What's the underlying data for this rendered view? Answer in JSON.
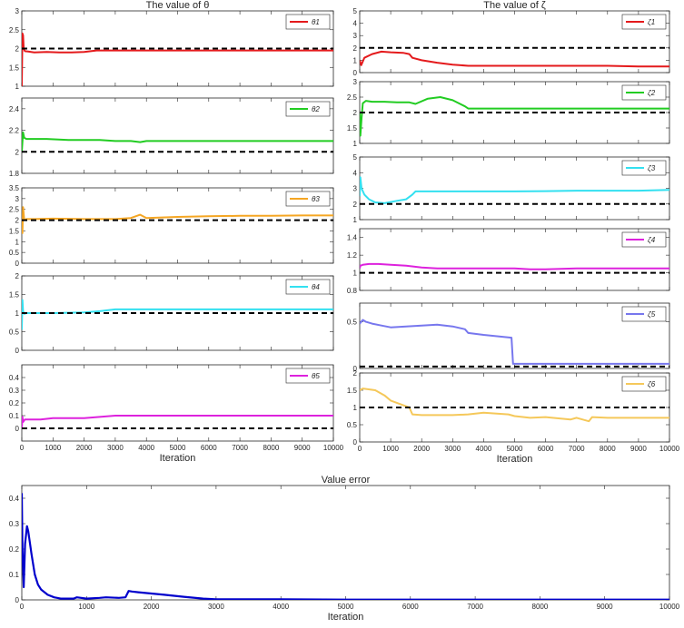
{
  "chart_data": [
    {
      "type": "line",
      "title": "The value of θ",
      "xlim": [
        0,
        10000
      ],
      "ylim": [
        1,
        3
      ],
      "yticks": [
        "1",
        "1.5",
        "2",
        "2.5",
        "3"
      ],
      "xticks": [],
      "series": [
        {
          "name": "θ1",
          "color": "#e41a1c",
          "style": "solid",
          "x": [
            0,
            20,
            40,
            60,
            100,
            200,
            400,
            800,
            1200,
            1600,
            2000,
            2400,
            3000,
            4000,
            5000,
            6000,
            7000,
            8000,
            9000,
            10000
          ],
          "y": [
            1.0,
            2.4,
            2.35,
            2.0,
            1.93,
            1.92,
            1.9,
            1.91,
            1.9,
            1.9,
            1.91,
            1.95,
            1.95,
            1.95,
            1.95,
            1.95,
            1.95,
            1.95,
            1.95,
            1.95
          ]
        },
        {
          "name": "",
          "color": "#000000",
          "style": "dashed",
          "x": [
            0,
            10000
          ],
          "y": [
            2,
            2
          ]
        }
      ]
    },
    {
      "type": "line",
      "title": "",
      "xlim": [
        0,
        10000
      ],
      "ylim": [
        1.8,
        2.5
      ],
      "yticks": [
        "1.8",
        "2",
        "2.2",
        "2.4"
      ],
      "xticks": [],
      "series": [
        {
          "name": "θ2",
          "color": "#22cc22",
          "style": "solid",
          "x": [
            0,
            40,
            80,
            150,
            300,
            800,
            1500,
            2500,
            3000,
            3500,
            3800,
            4000,
            5000,
            6000,
            7000,
            8000,
            9000,
            10000
          ],
          "y": [
            2.0,
            2.18,
            2.13,
            2.12,
            2.12,
            2.12,
            2.11,
            2.11,
            2.1,
            2.1,
            2.09,
            2.1,
            2.1,
            2.1,
            2.1,
            2.1,
            2.1,
            2.1
          ]
        },
        {
          "name": "",
          "color": "#000000",
          "style": "dashed",
          "x": [
            0,
            10000
          ],
          "y": [
            2.0,
            2.0
          ]
        }
      ]
    },
    {
      "type": "line",
      "title": "",
      "xlim": [
        0,
        10000
      ],
      "ylim": [
        0,
        3.5
      ],
      "yticks": [
        "0",
        "0.5",
        "1",
        "1.5",
        "2",
        "2.5",
        "3",
        "3.5"
      ],
      "xticks": [],
      "series": [
        {
          "name": "θ3",
          "color": "#f5a623",
          "style": "solid",
          "x": [
            0,
            20,
            40,
            80,
            150,
            400,
            1000,
            2000,
            3000,
            3500,
            3800,
            4000,
            5000,
            6000,
            7000,
            8000,
            9000,
            10000
          ],
          "y": [
            2.0,
            1.4,
            2.6,
            2.0,
            2.05,
            2.05,
            2.07,
            2.05,
            2.05,
            2.1,
            2.25,
            2.1,
            2.15,
            2.18,
            2.2,
            2.2,
            2.22,
            2.22
          ]
        },
        {
          "name": "",
          "color": "#000000",
          "style": "dashed",
          "x": [
            0,
            10000
          ],
          "y": [
            2.0,
            2.0
          ]
        }
      ]
    },
    {
      "type": "line",
      "title": "",
      "xlim": [
        0,
        10000
      ],
      "ylim": [
        0,
        2
      ],
      "yticks": [
        "0",
        "0.5",
        "1",
        "1.5",
        "2"
      ],
      "xticks": [],
      "series": [
        {
          "name": "θ4",
          "color": "#33e0f0",
          "style": "solid",
          "x": [
            0,
            20,
            40,
            80,
            150,
            300,
            1000,
            2000,
            2500,
            3000,
            4000,
            5000,
            6000,
            7000,
            8000,
            9000,
            10000
          ],
          "y": [
            0.55,
            1.35,
            1.05,
            0.98,
            1.0,
            1.0,
            1.0,
            1.02,
            1.05,
            1.1,
            1.1,
            1.1,
            1.1,
            1.1,
            1.1,
            1.1,
            1.1
          ]
        },
        {
          "name": "",
          "color": "#000000",
          "style": "dashed",
          "x": [
            0,
            10000
          ],
          "y": [
            1.0,
            1.0
          ]
        }
      ]
    },
    {
      "type": "line",
      "title": "",
      "xlim": [
        0,
        10000
      ],
      "ylim": [
        -0.1,
        0.5
      ],
      "yticks": [
        "0",
        "0.1",
        "0.2",
        "0.3",
        "0.4"
      ],
      "xticks": [
        "0",
        "1000",
        "2000",
        "3000",
        "4000",
        "5000",
        "6000",
        "7000",
        "8000",
        "9000",
        "10000"
      ],
      "xlabel": "Iteration",
      "series": [
        {
          "name": "θ5",
          "color": "#dd22dd",
          "style": "solid",
          "x": [
            0,
            20,
            40,
            100,
            300,
            600,
            1000,
            1500,
            2000,
            2500,
            3000,
            4000,
            5000,
            6000,
            7000,
            8000,
            9000,
            10000
          ],
          "y": [
            0.0,
            0.09,
            0.05,
            0.07,
            0.07,
            0.07,
            0.08,
            0.08,
            0.08,
            0.09,
            0.1,
            0.1,
            0.1,
            0.1,
            0.1,
            0.1,
            0.1,
            0.1
          ]
        },
        {
          "name": "",
          "color": "#000000",
          "style": "dashed",
          "x": [
            0,
            10000
          ],
          "y": [
            0.0,
            0.0
          ]
        }
      ]
    },
    {
      "type": "line",
      "title": "The value of ζ",
      "xlim": [
        0,
        10000
      ],
      "ylim": [
        0,
        5
      ],
      "yticks": [
        "0",
        "1",
        "2",
        "3",
        "4",
        "5"
      ],
      "xticks": [],
      "series": [
        {
          "name": "ζ1",
          "color": "#e41a1c",
          "style": "solid",
          "x": [
            0,
            50,
            150,
            400,
            700,
            1000,
            1400,
            1600,
            1700,
            2000,
            2500,
            3000,
            3500,
            4000,
            5000,
            6000,
            7000,
            8000,
            9000,
            10000
          ],
          "y": [
            1.0,
            0.6,
            1.2,
            1.5,
            1.7,
            1.65,
            1.6,
            1.5,
            1.2,
            1.0,
            0.8,
            0.65,
            0.55,
            0.55,
            0.55,
            0.55,
            0.55,
            0.55,
            0.5,
            0.5
          ]
        },
        {
          "name": "",
          "color": "#000000",
          "style": "dashed",
          "x": [
            0,
            10000
          ],
          "y": [
            2.0,
            2.0
          ]
        }
      ]
    },
    {
      "type": "line",
      "title": "",
      "xlim": [
        0,
        10000
      ],
      "ylim": [
        1,
        3
      ],
      "yticks": [
        "1",
        "1.5",
        "2",
        "2.5",
        "3"
      ],
      "xticks": [],
      "series": [
        {
          "name": "ζ2",
          "color": "#22cc22",
          "style": "solid",
          "x": [
            0,
            20,
            60,
            100,
            200,
            400,
            800,
            1200,
            1600,
            1800,
            2200,
            2600,
            3000,
            3400,
            3500,
            4000,
            5000,
            6000,
            7000,
            8000,
            9000,
            10000
          ],
          "y": [
            2.0,
            1.25,
            1.8,
            2.3,
            2.38,
            2.35,
            2.35,
            2.33,
            2.33,
            2.28,
            2.45,
            2.5,
            2.4,
            2.2,
            2.13,
            2.13,
            2.13,
            2.13,
            2.13,
            2.13,
            2.13,
            2.13
          ]
        },
        {
          "name": "",
          "color": "#000000",
          "style": "dashed",
          "x": [
            0,
            10000
          ],
          "y": [
            2.0,
            2.0
          ]
        }
      ]
    },
    {
      "type": "line",
      "title": "",
      "xlim": [
        0,
        10000
      ],
      "ylim": [
        1,
        5
      ],
      "yticks": [
        "1",
        "2",
        "3",
        "4",
        "5"
      ],
      "xticks": [],
      "series": [
        {
          "name": "ζ3",
          "color": "#33e0f0",
          "style": "solid",
          "x": [
            0,
            20,
            60,
            150,
            300,
            500,
            800,
            1200,
            1500,
            1700,
            1800,
            2000,
            3000,
            4000,
            5000,
            6000,
            7000,
            8000,
            9000,
            10000
          ],
          "y": [
            2.5,
            3.7,
            3.0,
            2.6,
            2.3,
            2.1,
            2.05,
            2.2,
            2.3,
            2.6,
            2.8,
            2.8,
            2.8,
            2.8,
            2.8,
            2.82,
            2.85,
            2.85,
            2.85,
            2.9
          ]
        },
        {
          "name": "",
          "color": "#000000",
          "style": "dashed",
          "x": [
            0,
            10000
          ],
          "y": [
            2.0,
            2.0
          ]
        }
      ]
    },
    {
      "type": "line",
      "title": "",
      "xlim": [
        0,
        10000
      ],
      "ylim": [
        0.8,
        1.5
      ],
      "yticks": [
        "0.8",
        "1",
        "1.2",
        "1.4"
      ],
      "xticks": [],
      "series": [
        {
          "name": "ζ4",
          "color": "#dd22dd",
          "style": "solid",
          "x": [
            0,
            20,
            100,
            300,
            600,
            1000,
            1500,
            2000,
            2500,
            3000,
            4000,
            5000,
            5500,
            6000,
            7000,
            8000,
            9000,
            10000
          ],
          "y": [
            1.05,
            1.08,
            1.09,
            1.1,
            1.1,
            1.09,
            1.08,
            1.06,
            1.05,
            1.05,
            1.05,
            1.05,
            1.04,
            1.04,
            1.05,
            1.05,
            1.05,
            1.05
          ]
        },
        {
          "name": "",
          "color": "#000000",
          "style": "dashed",
          "x": [
            0,
            10000
          ],
          "y": [
            1.0,
            1.0
          ]
        }
      ]
    },
    {
      "type": "line",
      "title": "",
      "xlim": [
        0,
        10000
      ],
      "ylim": [
        0,
        0.7
      ],
      "yticks": [
        "0",
        "0.5"
      ],
      "xticks": [],
      "series": [
        {
          "name": "ζ5",
          "color": "#7777ee",
          "style": "solid",
          "x": [
            0,
            100,
            200,
            400,
            700,
            1000,
            1500,
            2000,
            2500,
            3000,
            3400,
            3500,
            4000,
            4900,
            4950,
            5000,
            6000,
            7000,
            8000,
            9000,
            10000
          ],
          "y": [
            0.48,
            0.52,
            0.5,
            0.48,
            0.46,
            0.44,
            0.45,
            0.46,
            0.47,
            0.45,
            0.42,
            0.38,
            0.36,
            0.33,
            0.05,
            0.05,
            0.05,
            0.05,
            0.05,
            0.05,
            0.05
          ]
        },
        {
          "name": "",
          "color": "#000000",
          "style": "dashed",
          "x": [
            0,
            10000
          ],
          "y": [
            0.02,
            0.02
          ]
        }
      ]
    },
    {
      "type": "line",
      "title": "",
      "xlim": [
        0,
        10000
      ],
      "ylim": [
        0,
        2
      ],
      "yticks": [
        "0",
        "0.5",
        "1",
        "1.5",
        "2"
      ],
      "xticks": [
        "0",
        "1000",
        "2000",
        "3000",
        "4000",
        "5000",
        "6000",
        "7000",
        "8000",
        "9000",
        "10000"
      ],
      "xlabel": "Iteration",
      "series": [
        {
          "name": "ζ6",
          "color": "#f5c85a",
          "style": "solid",
          "x": [
            0,
            100,
            500,
            800,
            1000,
            1300,
            1600,
            1700,
            2000,
            3000,
            3500,
            4000,
            4800,
            5000,
            5500,
            6000,
            6800,
            7000,
            7400,
            7500,
            8000,
            9000,
            10000
          ],
          "y": [
            1.5,
            1.55,
            1.5,
            1.35,
            1.2,
            1.1,
            1.0,
            0.8,
            0.78,
            0.78,
            0.8,
            0.85,
            0.8,
            0.75,
            0.7,
            0.72,
            0.65,
            0.7,
            0.6,
            0.72,
            0.7,
            0.7,
            0.7
          ]
        },
        {
          "name": "",
          "color": "#000000",
          "style": "dashed",
          "x": [
            0,
            10000
          ],
          "y": [
            1.0,
            1.0
          ]
        }
      ]
    },
    {
      "type": "line",
      "title": "Value error",
      "xlim": [
        0,
        10000
      ],
      "ylim": [
        0,
        0.45
      ],
      "yticks": [
        "0",
        "0.1",
        "0.2",
        "0.3",
        "0.4"
      ],
      "xticks": [
        "0",
        "1000",
        "2000",
        "3000",
        "4000",
        "5000",
        "6000",
        "7000",
        "8000",
        "9000",
        "10000"
      ],
      "xlabel": "Iteration",
      "series": [
        {
          "name": "",
          "color": "#0000cc",
          "style": "solid",
          "x": [
            0,
            10,
            30,
            50,
            80,
            100,
            150,
            200,
            250,
            300,
            400,
            500,
            600,
            800,
            850,
            1000,
            1200,
            1300,
            1500,
            1600,
            1650,
            1700,
            1800,
            2000,
            2200,
            2500,
            2800,
            3000,
            4000,
            5000,
            6000,
            7000,
            8000,
            9000,
            10000
          ],
          "y": [
            0.42,
            0.2,
            0.05,
            0.22,
            0.29,
            0.27,
            0.18,
            0.1,
            0.06,
            0.04,
            0.02,
            0.01,
            0.005,
            0.005,
            0.01,
            0.005,
            0.008,
            0.01,
            0.008,
            0.01,
            0.035,
            0.033,
            0.03,
            0.025,
            0.02,
            0.012,
            0.005,
            0.002,
            0.002,
            0.001,
            0.001,
            0.001,
            0.001,
            0.001,
            0.001
          ]
        }
      ]
    }
  ]
}
